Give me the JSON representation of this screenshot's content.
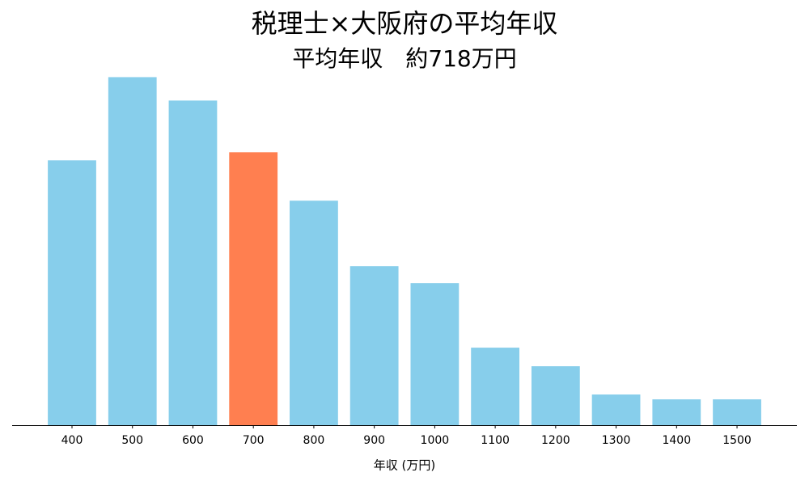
{
  "chart_data": {
    "type": "bar",
    "title": "税理士×大阪府の平均年収",
    "subtitle": "平均年収　約718万円",
    "x_label": "年収 (万円)",
    "categories": [
      "400",
      "500",
      "600",
      "700",
      "800",
      "900",
      "1000",
      "1100",
      "1200",
      "1300",
      "1400",
      "1500"
    ],
    "values": [
      328,
      431,
      402,
      338,
      278,
      197,
      176,
      96,
      73,
      38,
      32,
      32
    ],
    "colors": [
      "#87ceeb",
      "#87ceeb",
      "#87ceeb",
      "#ff7f50",
      "#87ceeb",
      "#87ceeb",
      "#87ceeb",
      "#87ceeb",
      "#87ceeb",
      "#87ceeb",
      "#87ceeb",
      "#87ceeb"
    ],
    "ylim": [
      0,
      453
    ]
  }
}
